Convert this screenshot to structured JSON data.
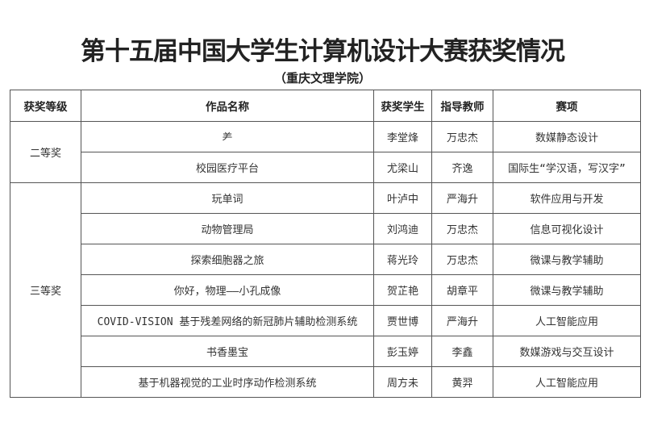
{
  "title": "第十五届中国大学生计算机设计大赛获奖情况",
  "subtitle": "（重庆文理学院）",
  "table": {
    "headers": [
      "获奖等级",
      "作品名称",
      "获奖学生",
      "指导教师",
      "赛项"
    ],
    "groups": [
      {
        "level": "二等奖",
        "rows": [
          {
            "work": "⺶",
            "student": "李堂烽",
            "teacher": "万忠杰",
            "category": "数媒静态设计"
          },
          {
            "work": "校园医疗平台",
            "student": "尤梁山",
            "teacher": "齐逸",
            "category": "国际生“学汉语，写汉字”"
          }
        ]
      },
      {
        "level": "三等奖",
        "rows": [
          {
            "work": "玩单词",
            "student": "叶泸中",
            "teacher": "严海升",
            "category": "软件应用与开发"
          },
          {
            "work": "动物管理局",
            "student": "刘鸿迪",
            "teacher": "万忠杰",
            "category": "信息可视化设计"
          },
          {
            "work": "探索细胞器之旅",
            "student": "蒋光玲",
            "teacher": "万忠杰",
            "category": "微课与教学辅助"
          },
          {
            "work": "你好，物理——小孔成像",
            "student": "贺芷艳",
            "teacher": "胡章平",
            "category": "微课与教学辅助"
          },
          {
            "work": "COVID-VISION 基于残差网络的新冠肺片辅助检测系统",
            "student": "贾世博",
            "teacher": "严海升",
            "category": "人工智能应用"
          },
          {
            "work": "书香墨宝",
            "student": "彭玉婷",
            "teacher": "李鑫",
            "category": "数媒游戏与交互设计"
          },
          {
            "work": "基于机器视觉的工业时序动作检测系统",
            "student": "周方未",
            "teacher": "黄羿",
            "category": "人工智能应用"
          }
        ]
      }
    ]
  }
}
